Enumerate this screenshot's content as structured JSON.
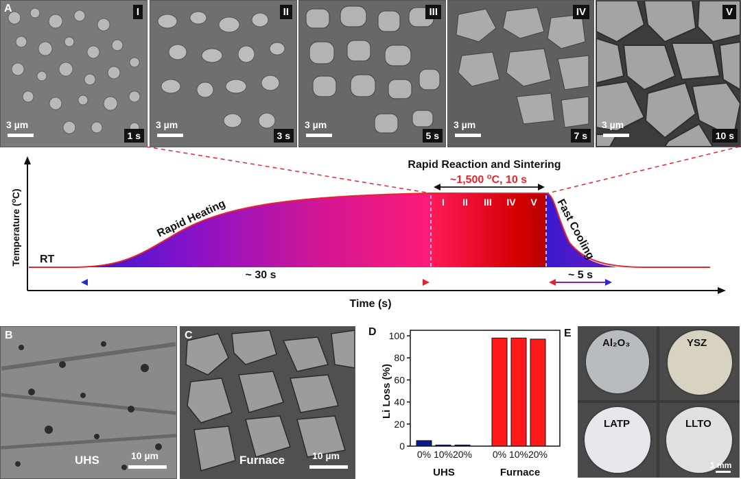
{
  "panel_a": {
    "letter": "A",
    "images": [
      {
        "roman": "I",
        "scale": "3 µm",
        "time": "1 s"
      },
      {
        "roman": "II",
        "scale": "3 µm",
        "time": "3 s"
      },
      {
        "roman": "III",
        "scale": "3 µm",
        "time": "5 s"
      },
      {
        "roman": "IV",
        "scale": "3 µm",
        "time": "7 s"
      },
      {
        "roman": "V",
        "scale": "3 µm",
        "time": "10 s"
      }
    ],
    "diagram": {
      "ylabel": "Temperature (",
      "ylabel_sup": "o",
      "ylabel_end": "C)",
      "xlabel": "Time (s)",
      "rt": "RT",
      "rapid_heating": "Rapid Heating",
      "fast_cooling": "Fast Cooling",
      "reaction_title": "Rapid Reaction and Sintering",
      "hold_prefix": "~1,500 ",
      "hold_sup": "o",
      "hold_suffix": "C, 10 s",
      "stages": [
        "I",
        "II",
        "III",
        "IV",
        "V"
      ],
      "heating_time": "~ 30 s",
      "cooling_time": "~ 5 s"
    }
  },
  "panel_b": {
    "letter": "B",
    "label": "UHS",
    "scale": "10 µm"
  },
  "panel_c": {
    "letter": "C",
    "label": "Furnace",
    "scale": "10 µm"
  },
  "panel_d": {
    "letter": "D"
  },
  "panel_e": {
    "letter": "E",
    "tiles": [
      {
        "label": "Al₂O₃"
      },
      {
        "label": "YSZ"
      },
      {
        "label": "LATP"
      },
      {
        "label": "LLTO"
      }
    ],
    "scale": "1 mm"
  },
  "chart_data": {
    "type": "bar",
    "ylabel": "Li Loss (%)",
    "ylim": [
      0,
      105
    ],
    "yticks": [
      0,
      20,
      40,
      60,
      80,
      100
    ],
    "categories": [
      "0%",
      "10%",
      "20%",
      "0%",
      "10%",
      "20%"
    ],
    "groups": [
      "UHS",
      "Furnace"
    ],
    "values": [
      5,
      1,
      1,
      98,
      98,
      97
    ],
    "colors": [
      "#0d1a8c",
      "#0d1a8c",
      "#0d1a8c",
      "#ff1a1a",
      "#ff1a1a",
      "#ff1a1a"
    ]
  },
  "colors": {
    "hot": "#ff0000",
    "heat_start": "#2a1ad8",
    "heat_mid": "#b400b8",
    "heat_end": "#ff1a78",
    "arrow_blue": "#2a2ad0",
    "arrow_red": "#e8242a"
  }
}
